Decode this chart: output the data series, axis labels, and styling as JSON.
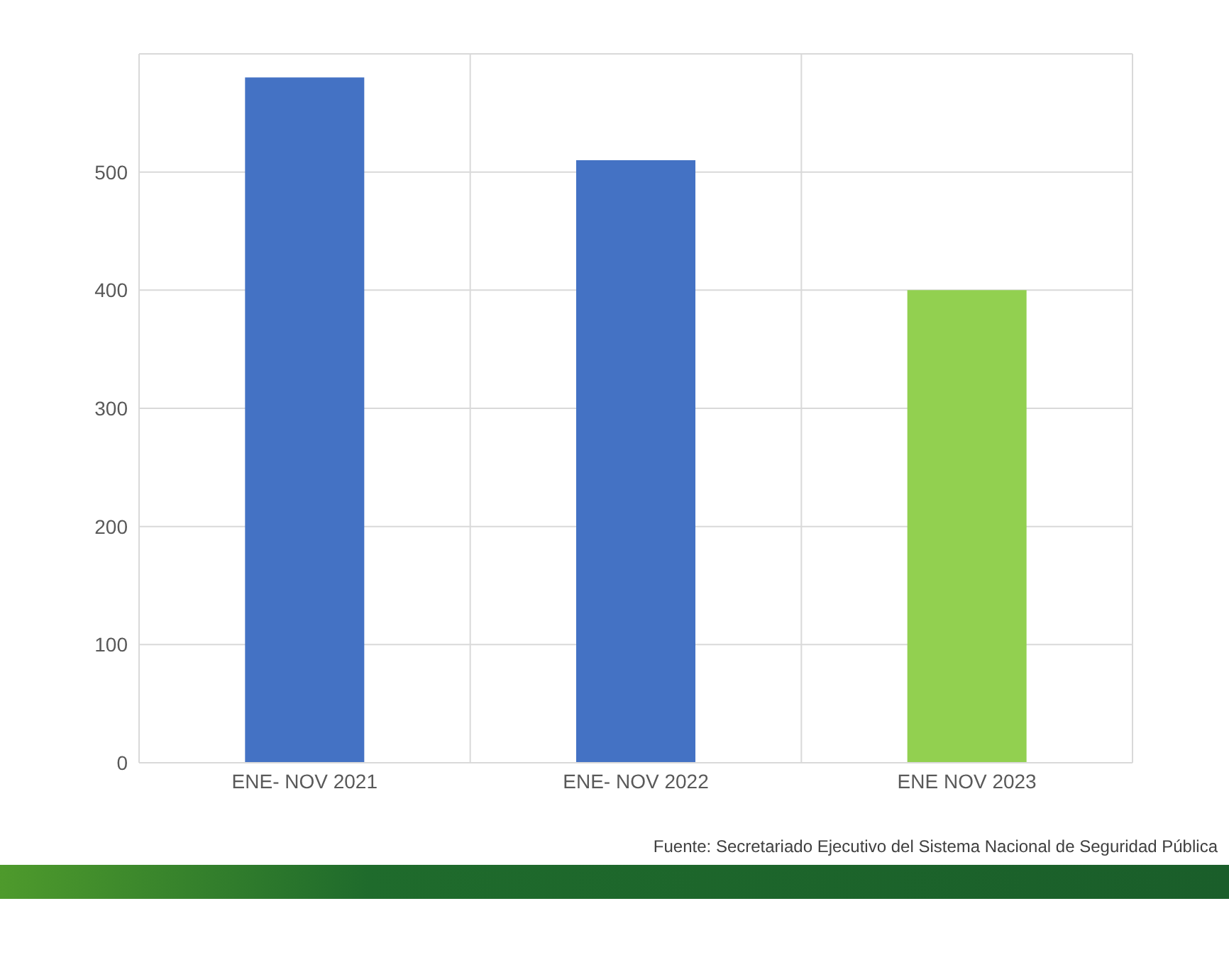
{
  "chart_data": {
    "type": "bar",
    "categories": [
      "ENE- NOV 2021",
      "ENE- NOV 2022",
      "ENE NOV 2023"
    ],
    "values": [
      580,
      510,
      400
    ],
    "colors": [
      "#4472c4",
      "#4472c4",
      "#92d050"
    ],
    "ylim": [
      0,
      600
    ],
    "yticks": [
      0,
      100,
      200,
      300,
      400,
      500
    ],
    "grid": true,
    "annotations": [
      "Fuente: Secretariado Ejecutivo del Sistema Nacional de Seguridad Pública"
    ]
  }
}
